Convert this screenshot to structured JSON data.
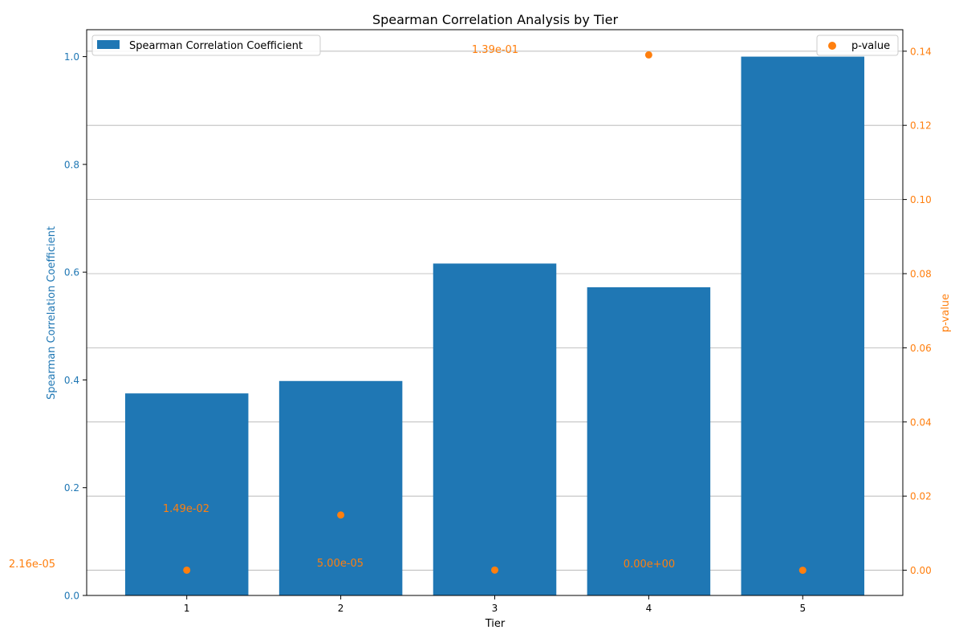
{
  "chart_data": {
    "type": "bar",
    "title": "Spearman Correlation Analysis by Tier",
    "xlabel": "Tier",
    "ylabel_left": "Spearman Correlation Coefficient",
    "ylabel_right": "p-value",
    "categories": [
      "1",
      "2",
      "3",
      "4",
      "5"
    ],
    "series": [
      {
        "name": "Spearman Correlation Coefficient",
        "kind": "bar",
        "axis": "left",
        "color": "#1f77b4",
        "values": [
          0.375,
          0.398,
          0.616,
          0.572,
          1.0
        ]
      },
      {
        "name": "p-value",
        "kind": "scatter",
        "axis": "right",
        "color": "#ff7f0e",
        "values": [
          2.16e-05,
          0.0149,
          5e-05,
          0.139,
          0.0
        ]
      }
    ],
    "annotations": [
      "2.16e-05",
      "1.49e-02",
      "5.00e-05",
      "1.39e-01",
      "0.00e+00"
    ],
    "ylim_left": [
      0,
      1.05
    ],
    "yticks_left": [
      "0.0",
      "0.2",
      "0.4",
      "0.6",
      "0.8",
      "1.0"
    ],
    "ylim_right": [
      -0.0068,
      0.1458
    ],
    "yticks_right": [
      "0.00",
      "0.02",
      "0.04",
      "0.06",
      "0.08",
      "0.10",
      "0.12",
      "0.14"
    ],
    "grid": "horizontal",
    "legend_left": "upper-left",
    "legend_right": "upper-right"
  }
}
